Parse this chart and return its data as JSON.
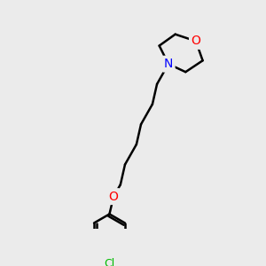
{
  "bg_color": "#ebebeb",
  "bond_color": "#000000",
  "bond_width": 1.8,
  "atom_colors": {
    "N": "#0000ff",
    "O": "#ff0000",
    "Cl": "#00bb00"
  },
  "font_size_atom": 10,
  "font_size_cl": 9,
  "fig_size": [
    3.0,
    3.0
  ],
  "dpi": 100
}
